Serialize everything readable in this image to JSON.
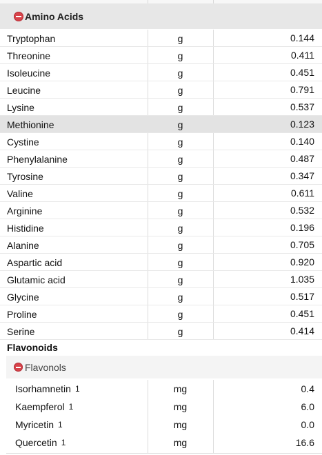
{
  "amino_acids": {
    "title": "Amino Acids",
    "rows": [
      {
        "name": "Tryptophan",
        "unit": "g",
        "value": "0.144"
      },
      {
        "name": "Threonine",
        "unit": "g",
        "value": "0.411"
      },
      {
        "name": "Isoleucine",
        "unit": "g",
        "value": "0.451"
      },
      {
        "name": "Leucine",
        "unit": "g",
        "value": "0.791"
      },
      {
        "name": "Lysine",
        "unit": "g",
        "value": "0.537"
      },
      {
        "name": "Methionine",
        "unit": "g",
        "value": "0.123"
      },
      {
        "name": "Cystine",
        "unit": "g",
        "value": "0.140"
      },
      {
        "name": "Phenylalanine",
        "unit": "g",
        "value": "0.487"
      },
      {
        "name": "Tyrosine",
        "unit": "g",
        "value": "0.347"
      },
      {
        "name": "Valine",
        "unit": "g",
        "value": "0.611"
      },
      {
        "name": "Arginine",
        "unit": "g",
        "value": "0.532"
      },
      {
        "name": "Histidine",
        "unit": "g",
        "value": "0.196"
      },
      {
        "name": "Alanine",
        "unit": "g",
        "value": "0.705"
      },
      {
        "name": "Aspartic acid",
        "unit": "g",
        "value": "0.920"
      },
      {
        "name": "Glutamic acid",
        "unit": "g",
        "value": "1.035"
      },
      {
        "name": "Glycine",
        "unit": "g",
        "value": "0.517"
      },
      {
        "name": "Proline",
        "unit": "g",
        "value": "0.451"
      },
      {
        "name": "Serine",
        "unit": "g",
        "value": "0.414"
      }
    ]
  },
  "flavonoids": {
    "title": "Flavonoids",
    "flavonols": {
      "title": "Flavonols",
      "rows": [
        {
          "name": "Isorhamnetin",
          "footnote": "1",
          "unit": "mg",
          "value": "0.4"
        },
        {
          "name": "Kaempferol",
          "footnote": "1",
          "unit": "mg",
          "value": "6.0"
        },
        {
          "name": "Myricetin",
          "footnote": "1",
          "unit": "mg",
          "value": "0.0"
        },
        {
          "name": "Quercetin",
          "footnote": "1",
          "unit": "mg",
          "value": "16.6"
        }
      ]
    }
  },
  "colors": {
    "collapse_icon": "#d8434a",
    "header_bg": "#e7e7e7",
    "highlight_row": "#e3e3e3"
  },
  "icons": {
    "collapse": "minus-circle-icon"
  }
}
